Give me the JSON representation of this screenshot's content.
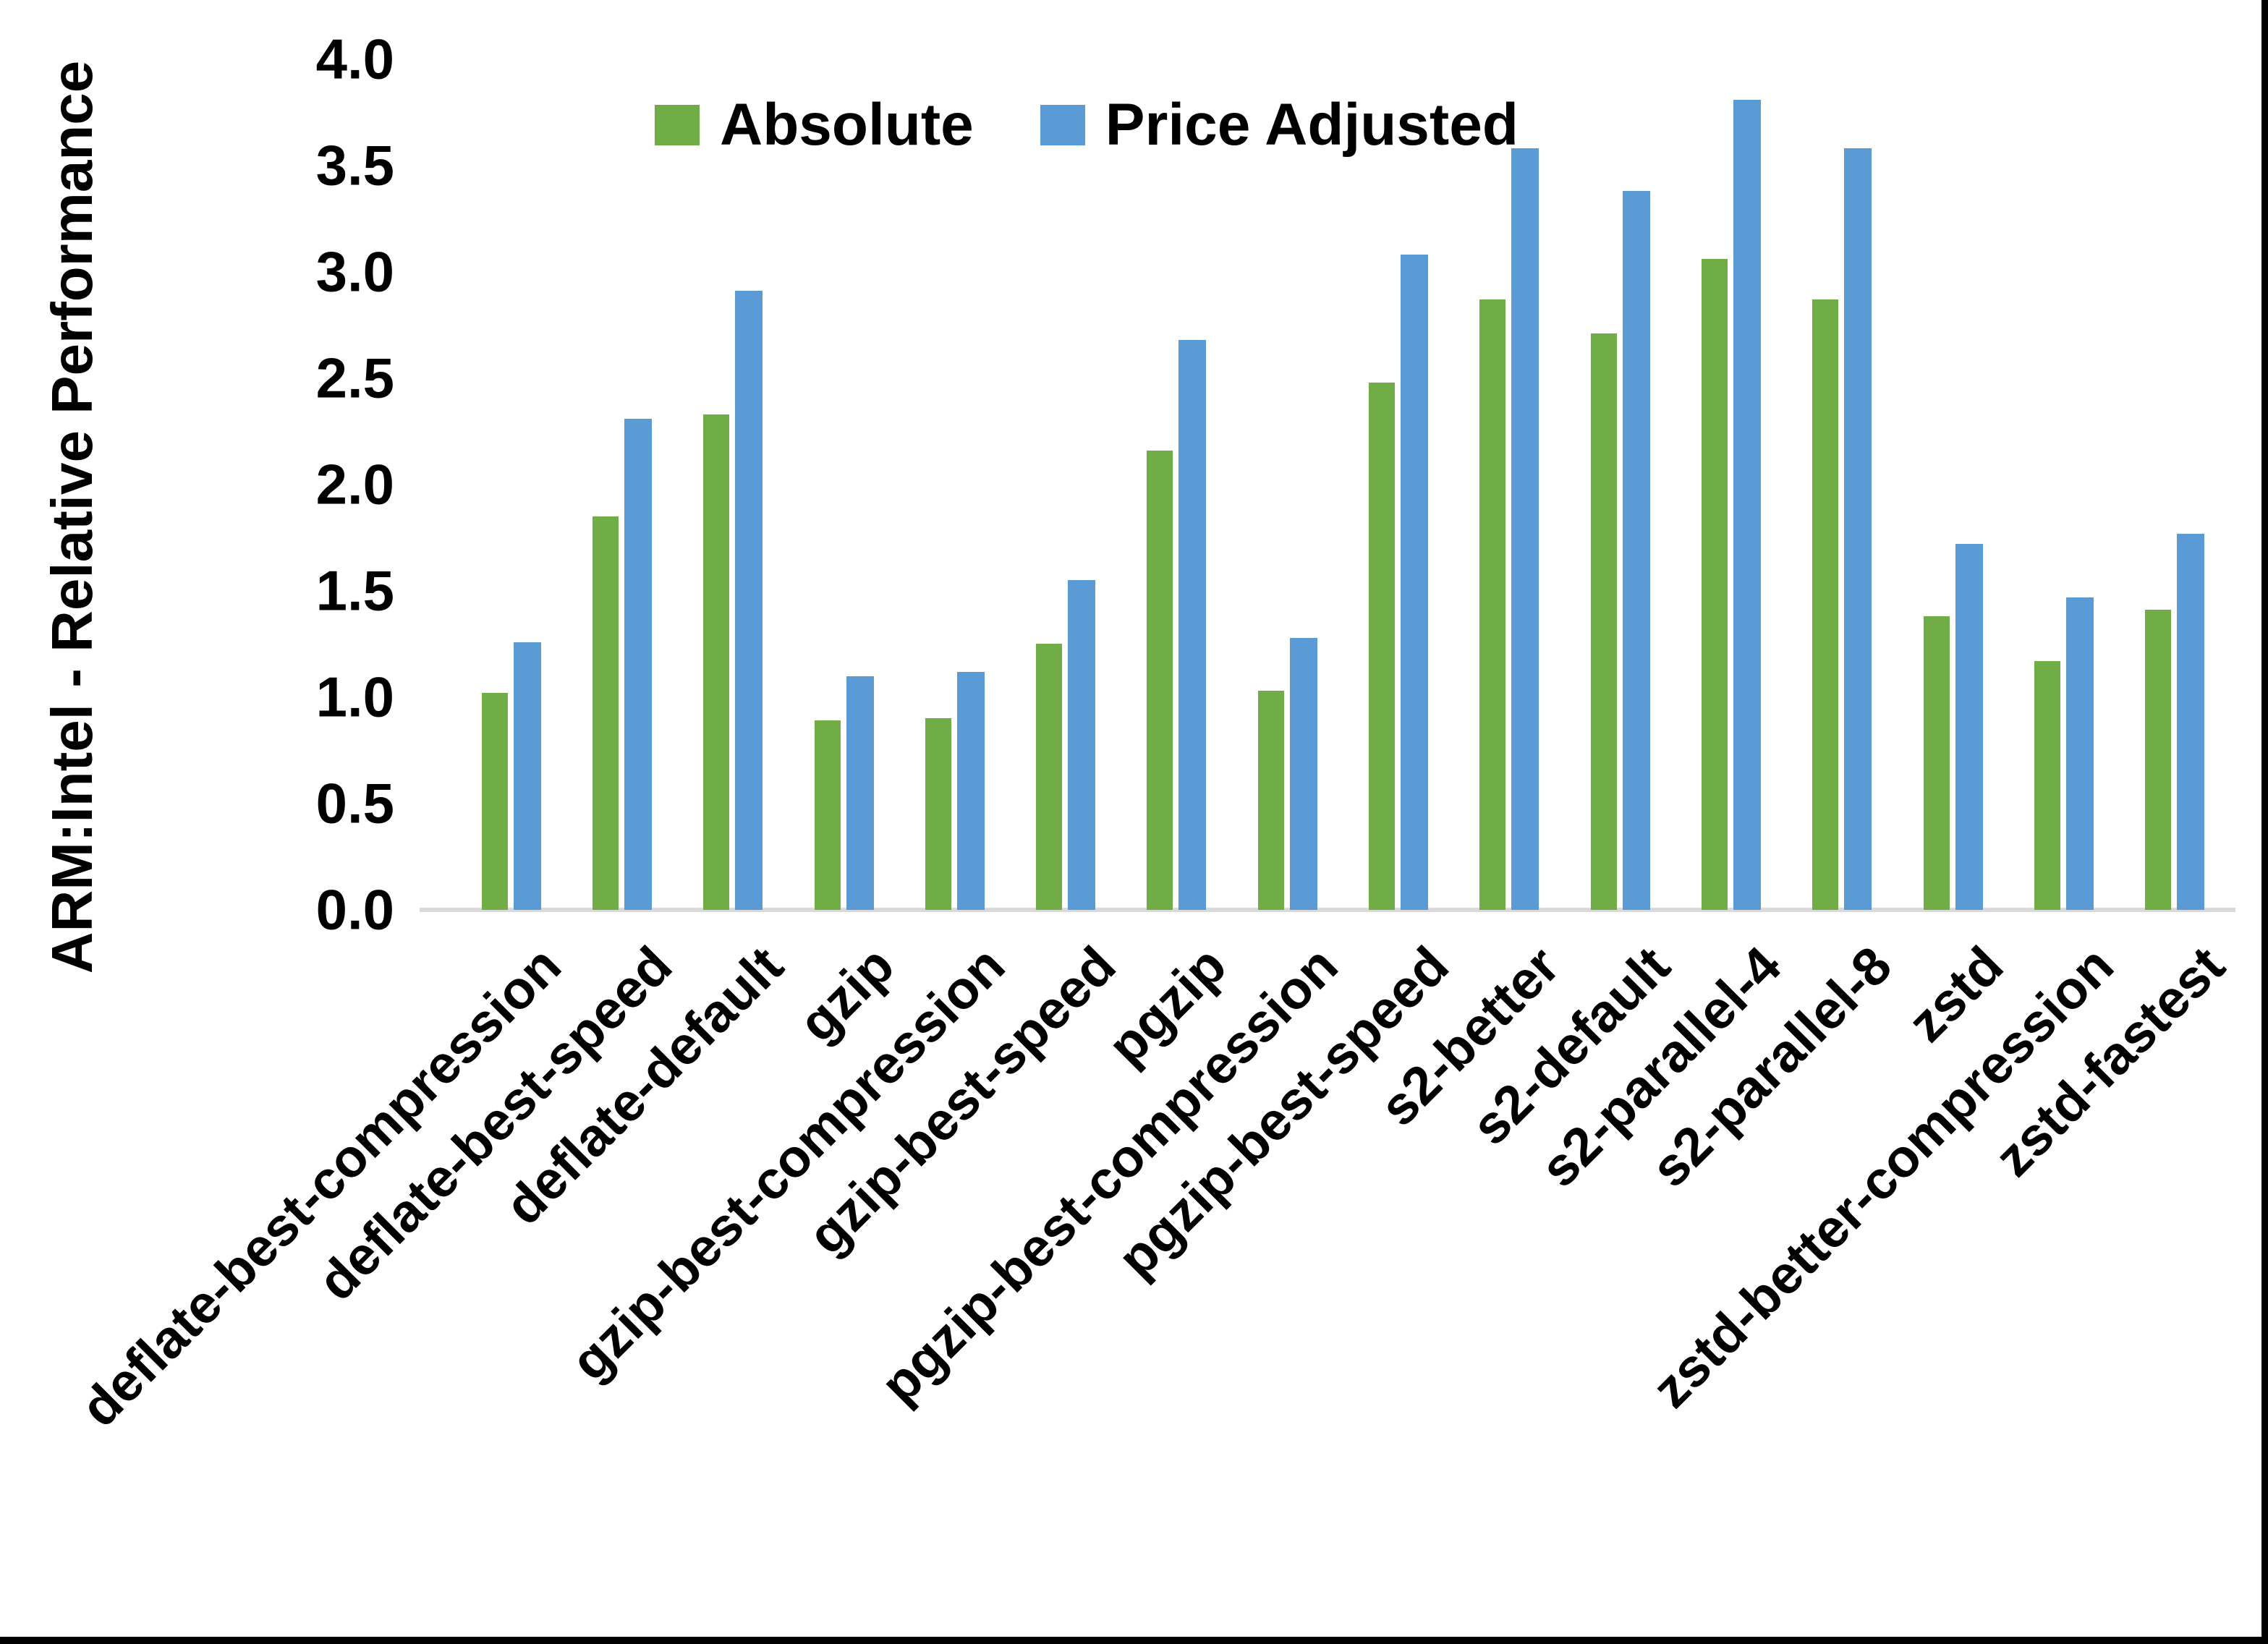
{
  "figure": {
    "background": "#FFFFFF",
    "frame_color": "#000000"
  },
  "chart_data": {
    "type": "bar",
    "title": "",
    "xlabel": "",
    "ylabel": "ARM:Intel - Relative Performance",
    "ylim": [
      0.0,
      4.0
    ],
    "ytick_step": 0.5,
    "y_ticks": [
      "4.0",
      "3.5",
      "3.0",
      "2.5",
      "2.0",
      "1.5",
      "1.0",
      "0.5",
      "0.0"
    ],
    "grid": false,
    "legend_position": "top-center",
    "axis_line_color": "#D9D9D9",
    "categories": [
      "deflate-best-compression",
      "deflate-best-speed",
      "deflate-default",
      "gzip",
      "gzip-best-compression",
      "gzip-best-speed",
      "pgzip",
      "pgzip-best-compression",
      "pgzip-best-speed",
      "s2-better",
      "s2-default",
      "s2-parallel-4",
      "s2-parallel-8",
      "zstd",
      "zstd-better-compression",
      "zstd-fastest"
    ],
    "series": [
      {
        "name": "Absolute",
        "color": "#70AD47",
        "values": [
          1.02,
          1.85,
          2.33,
          0.89,
          0.9,
          1.25,
          2.16,
          1.03,
          2.48,
          2.87,
          2.71,
          3.06,
          2.87,
          1.38,
          1.17,
          1.41
        ]
      },
      {
        "name": "Price Adjusted",
        "color": "#5B9BD5",
        "values": [
          1.26,
          2.31,
          2.91,
          1.1,
          1.12,
          1.55,
          2.68,
          1.28,
          3.08,
          3.58,
          3.38,
          3.81,
          3.58,
          1.72,
          1.47,
          1.77
        ]
      }
    ]
  }
}
